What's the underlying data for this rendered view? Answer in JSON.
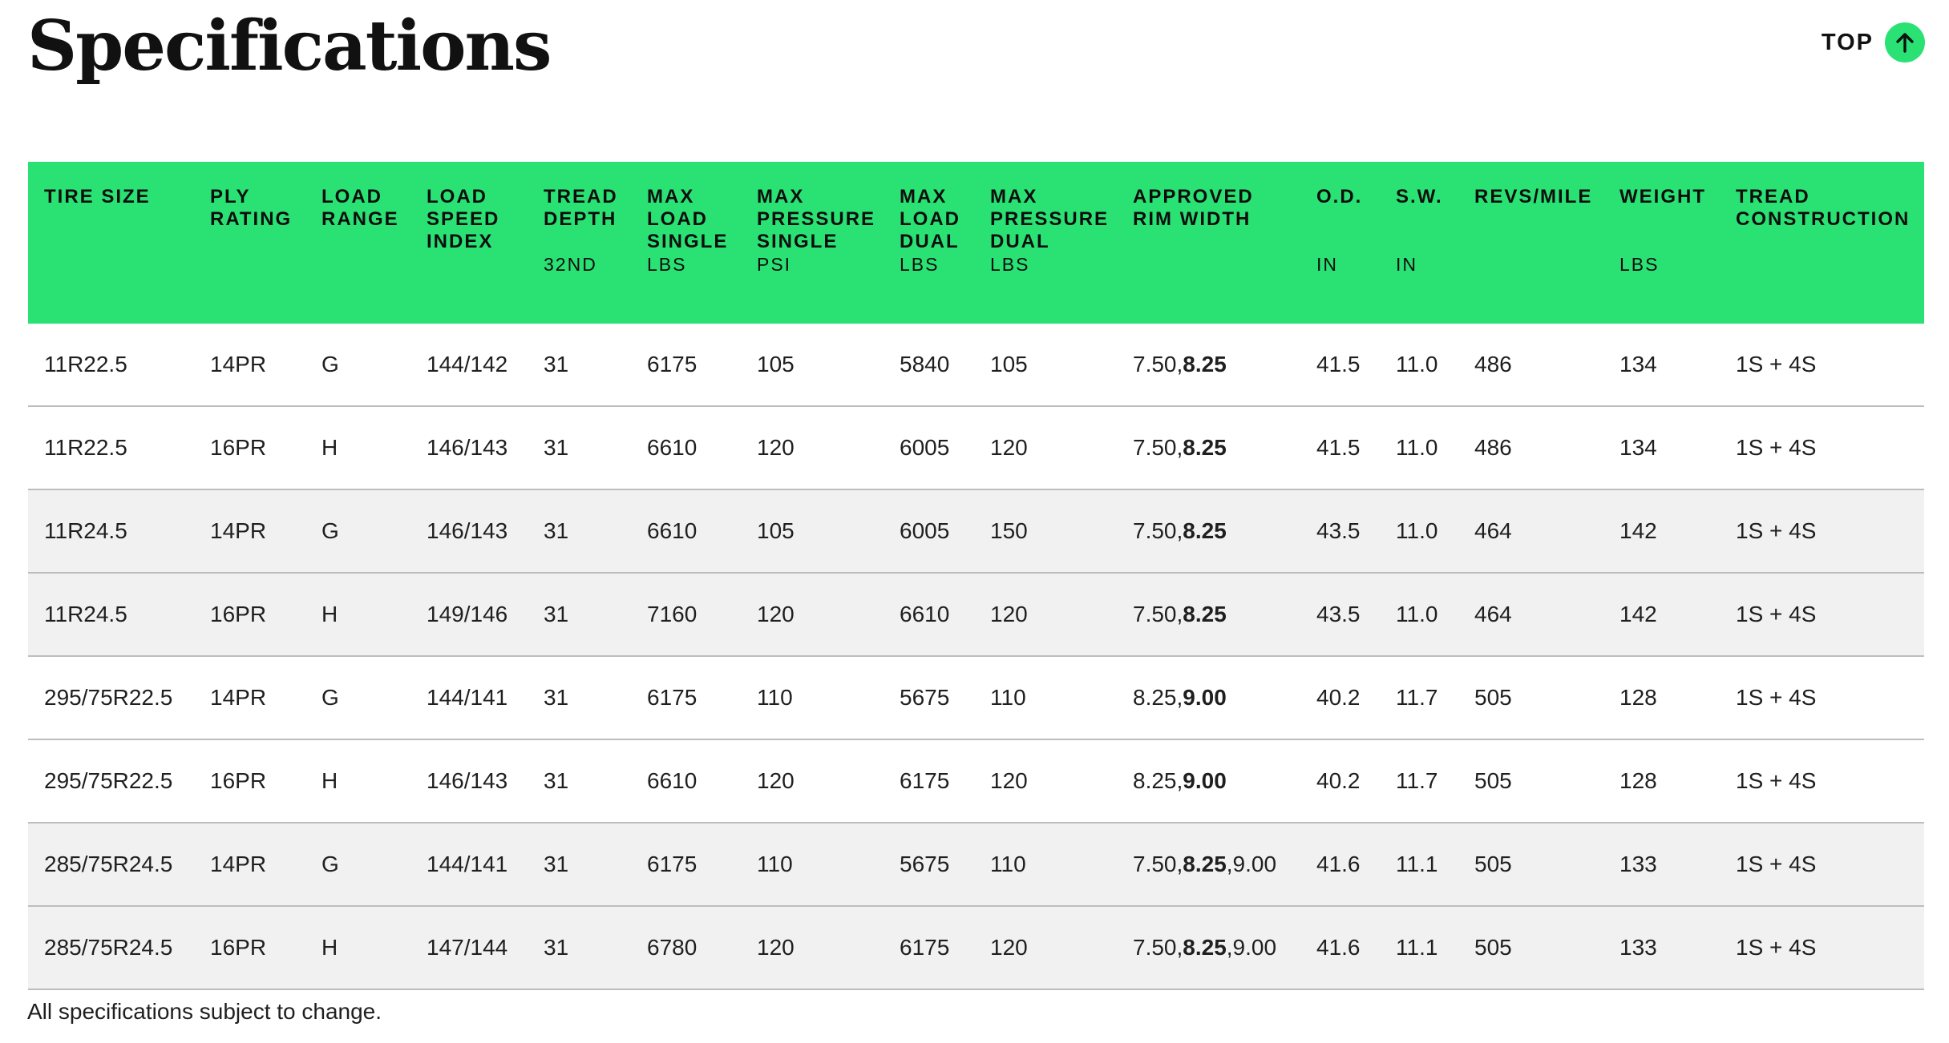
{
  "page": {
    "title": "Specifications",
    "top_label": "TOP",
    "top_icon": "arrow-up-icon",
    "accent_color": "#2ae274",
    "footnote": "All specifications subject to change."
  },
  "table": {
    "headers": [
      {
        "label": "TIRE SIZE",
        "unit": ""
      },
      {
        "label": "PLY RATING",
        "unit": ""
      },
      {
        "label": "LOAD RANGE",
        "unit": ""
      },
      {
        "label": "LOAD SPEED INDEX",
        "unit": ""
      },
      {
        "label": "TREAD DEPTH",
        "unit": "32ND"
      },
      {
        "label": "MAX LOAD SINGLE",
        "unit": "LBS"
      },
      {
        "label": "MAX PRESSURE SINGLE",
        "unit": "PSI"
      },
      {
        "label": "MAX LOAD DUAL",
        "unit": "LBS"
      },
      {
        "label": "MAX PRESSURE DUAL",
        "unit": "LBS"
      },
      {
        "label": "APPROVED RIM WIDTH",
        "unit": ""
      },
      {
        "label": "O.D.",
        "unit": "IN"
      },
      {
        "label": "S.W.",
        "unit": "IN"
      },
      {
        "label": "REVS/MILE",
        "unit": ""
      },
      {
        "label": "WEIGHT",
        "unit": "LBS"
      },
      {
        "label": "TREAD CONSTRUCTION",
        "unit": ""
      }
    ],
    "rows": [
      {
        "tire_size": "11R22.5",
        "ply_rating": "14PR",
        "load_range": "G",
        "load_speed_index": "144/142",
        "tread_depth": "31",
        "max_load_single": "6175",
        "max_pressure_single": "105",
        "max_load_dual": "5840",
        "max_pressure_dual": "105",
        "rim_pre": "7.50,",
        "rim_bold": "8.25",
        "rim_post": "",
        "od": "41.5",
        "sw": "11.0",
        "revs_mile": "486",
        "weight": "134",
        "tread_construction": "1S + 4S"
      },
      {
        "tire_size": "11R22.5",
        "ply_rating": "16PR",
        "load_range": "H",
        "load_speed_index": "146/143",
        "tread_depth": "31",
        "max_load_single": "6610",
        "max_pressure_single": "120",
        "max_load_dual": "6005",
        "max_pressure_dual": "120",
        "rim_pre": "7.50,",
        "rim_bold": "8.25",
        "rim_post": "",
        "od": "41.5",
        "sw": "11.0",
        "revs_mile": "486",
        "weight": "134",
        "tread_construction": "1S + 4S"
      },
      {
        "tire_size": "11R24.5",
        "ply_rating": "14PR",
        "load_range": "G",
        "load_speed_index": "146/143",
        "tread_depth": "31",
        "max_load_single": "6610",
        "max_pressure_single": "105",
        "max_load_dual": "6005",
        "max_pressure_dual": "150",
        "rim_pre": "7.50,",
        "rim_bold": "8.25",
        "rim_post": "",
        "od": "43.5",
        "sw": "11.0",
        "revs_mile": "464",
        "weight": "142",
        "tread_construction": "1S + 4S"
      },
      {
        "tire_size": "11R24.5",
        "ply_rating": "16PR",
        "load_range": "H",
        "load_speed_index": "149/146",
        "tread_depth": "31",
        "max_load_single": "7160",
        "max_pressure_single": "120",
        "max_load_dual": "6610",
        "max_pressure_dual": "120",
        "rim_pre": "7.50,",
        "rim_bold": "8.25",
        "rim_post": "",
        "od": "43.5",
        "sw": "11.0",
        "revs_mile": "464",
        "weight": "142",
        "tread_construction": "1S + 4S"
      },
      {
        "tire_size": "295/75R22.5",
        "ply_rating": "14PR",
        "load_range": "G",
        "load_speed_index": "144/141",
        "tread_depth": "31",
        "max_load_single": "6175",
        "max_pressure_single": "110",
        "max_load_dual": "5675",
        "max_pressure_dual": "110",
        "rim_pre": "8.25,",
        "rim_bold": "9.00",
        "rim_post": "",
        "od": "40.2",
        "sw": "11.7",
        "revs_mile": "505",
        "weight": "128",
        "tread_construction": "1S + 4S"
      },
      {
        "tire_size": "295/75R22.5",
        "ply_rating": "16PR",
        "load_range": "H",
        "load_speed_index": "146/143",
        "tread_depth": "31",
        "max_load_single": "6610",
        "max_pressure_single": "120",
        "max_load_dual": "6175",
        "max_pressure_dual": "120",
        "rim_pre": "8.25,",
        "rim_bold": "9.00",
        "rim_post": "",
        "od": "40.2",
        "sw": "11.7",
        "revs_mile": "505",
        "weight": "128",
        "tread_construction": "1S + 4S"
      },
      {
        "tire_size": "285/75R24.5",
        "ply_rating": "14PR",
        "load_range": "G",
        "load_speed_index": "144/141",
        "tread_depth": "31",
        "max_load_single": "6175",
        "max_pressure_single": "110",
        "max_load_dual": "5675",
        "max_pressure_dual": "110",
        "rim_pre": "7.50,",
        "rim_bold": "8.25",
        "rim_post": ",9.00",
        "od": "41.6",
        "sw": "11.1",
        "revs_mile": "505",
        "weight": "133",
        "tread_construction": "1S + 4S"
      },
      {
        "tire_size": "285/75R24.5",
        "ply_rating": "16PR",
        "load_range": "H",
        "load_speed_index": "147/144",
        "tread_depth": "31",
        "max_load_single": "6780",
        "max_pressure_single": "120",
        "max_load_dual": "6175",
        "max_pressure_dual": "120",
        "rim_pre": "7.50,",
        "rim_bold": "8.25",
        "rim_post": ",9.00",
        "od": "41.6",
        "sw": "11.1",
        "revs_mile": "505",
        "weight": "133",
        "tread_construction": "1S + 4S"
      }
    ]
  }
}
